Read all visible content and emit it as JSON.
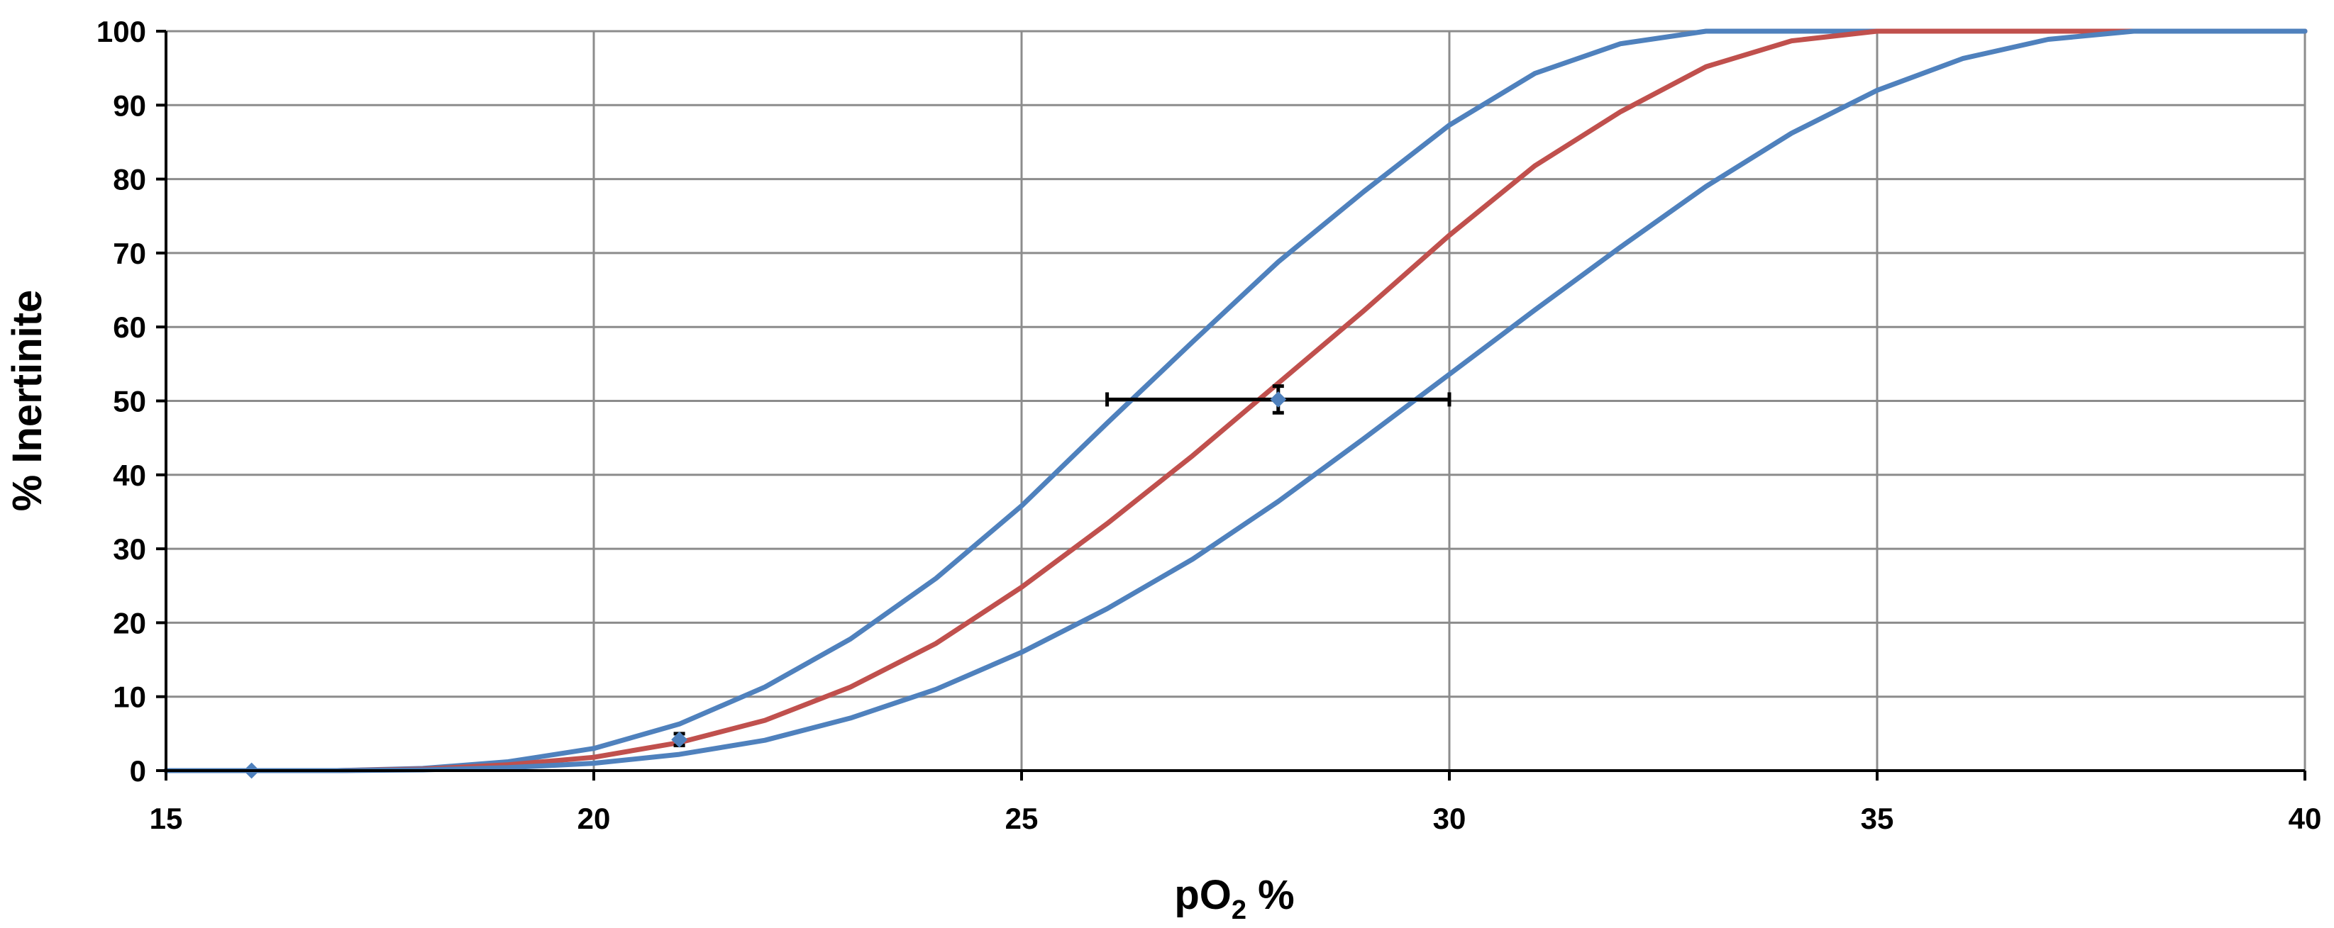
{
  "chart_data": {
    "type": "line",
    "title": "",
    "xlabel": "pO",
    "xlabel_subscript": "2",
    "xlabel_suffix": " %",
    "ylabel": "% Inertinite",
    "xlim": [
      15,
      40
    ],
    "ylim": [
      0,
      100
    ],
    "x_ticks": [
      15,
      20,
      25,
      30,
      35,
      40
    ],
    "y_ticks": [
      0,
      10,
      20,
      30,
      40,
      50,
      60,
      70,
      80,
      90,
      100
    ],
    "x_tick_labels": [
      "15",
      "20",
      "25",
      "30",
      "35",
      "40"
    ],
    "y_tick_labels": [
      "0",
      "10",
      "20",
      "30",
      "40",
      "50",
      "60",
      "70",
      "80",
      "90",
      "100"
    ],
    "grid": true,
    "legend": "none",
    "series": [
      {
        "color": "#4f81bd",
        "x": [
          15,
          17,
          18,
          19,
          20,
          21,
          22,
          23,
          24,
          25,
          26,
          27,
          28,
          29,
          30,
          31,
          32,
          33,
          34,
          35,
          36,
          37,
          38,
          39,
          40
        ],
        "y": [
          0,
          0,
          0.3,
          1.2,
          3,
          6.3,
          11.3,
          17.8,
          26,
          35.8,
          47,
          58,
          68.8,
          78.3,
          87.3,
          94.3,
          98.3,
          100,
          100,
          100,
          100,
          100,
          100,
          100,
          100
        ]
      },
      {
        "color": "#c0504d",
        "x": [
          15,
          17,
          18,
          19,
          20,
          21,
          22,
          23,
          24,
          25,
          26,
          27,
          28,
          29,
          30,
          31,
          32,
          33,
          34,
          35,
          36,
          37,
          38,
          39,
          40
        ],
        "y": [
          0,
          0,
          0.2,
          0.8,
          1.8,
          3.8,
          6.8,
          11.3,
          17.2,
          24.8,
          33.4,
          42.6,
          52.4,
          62.2,
          72.4,
          81.8,
          89.1,
          95.2,
          98.7,
          100,
          100,
          100,
          100,
          100,
          100
        ]
      },
      {
        "color": "#4f81bd",
        "x": [
          15,
          17,
          18,
          19,
          20,
          21,
          22,
          23,
          24,
          25,
          26,
          27,
          28,
          29,
          30,
          31,
          32,
          33,
          34,
          35,
          36,
          37,
          38,
          39,
          40
        ],
        "y": [
          0,
          0,
          0.1,
          0.4,
          1,
          2.2,
          4.1,
          7.1,
          11,
          16,
          21.9,
          28.6,
          36.4,
          44.9,
          53.6,
          62.3,
          70.8,
          79,
          86.2,
          92,
          96.3,
          98.9,
          100,
          100,
          100
        ]
      }
    ],
    "points": [
      {
        "x": 16,
        "y": 0,
        "color": "#4f81bd"
      },
      {
        "x": 21,
        "y": 4.2,
        "color": "#4f81bd",
        "y_err": 0.8
      },
      {
        "x": 28,
        "y": 50.2,
        "color": "#4f81bd",
        "x_err_low": 26,
        "x_err_high": 30,
        "y_err": 1.8
      }
    ]
  }
}
